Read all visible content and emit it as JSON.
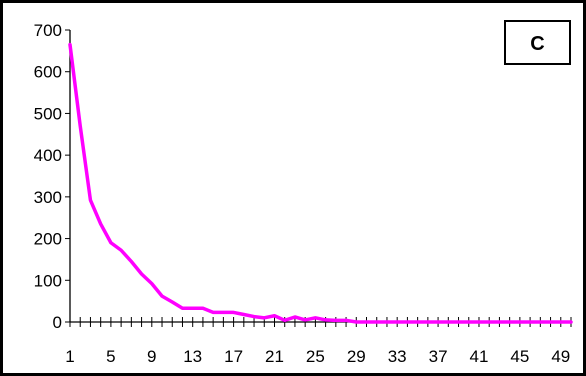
{
  "chart_data": {
    "type": "line",
    "title": "",
    "xlabel": "",
    "ylabel": "",
    "panel_label": "C",
    "x": [
      1,
      2,
      3,
      4,
      5,
      6,
      7,
      8,
      9,
      10,
      11,
      12,
      13,
      14,
      15,
      16,
      17,
      18,
      19,
      20,
      21,
      22,
      23,
      24,
      25,
      26,
      27,
      28,
      29,
      30,
      31,
      32,
      33,
      34,
      35,
      36,
      37,
      38,
      39,
      40,
      41,
      42,
      43,
      44,
      45,
      46,
      47,
      48,
      49,
      50
    ],
    "series": [
      {
        "name": "",
        "color": "#ff00ff",
        "values": [
          665,
          470,
          292,
          235,
          190,
          172,
          145,
          115,
          92,
          62,
          48,
          33,
          33,
          33,
          23,
          23,
          23,
          18,
          13,
          10,
          15,
          4,
          12,
          5,
          10,
          5,
          4,
          4,
          0,
          0,
          0,
          0,
          0,
          0,
          0,
          0,
          0,
          0,
          0,
          0,
          0,
          0,
          0,
          0,
          0,
          0,
          0,
          0,
          0,
          0
        ]
      }
    ],
    "ylim": [
      0,
      700
    ],
    "yticks": [
      0,
      100,
      200,
      300,
      400,
      500,
      600,
      700
    ],
    "xlim": [
      1,
      50
    ],
    "xtick_labels": [
      1,
      5,
      9,
      13,
      17,
      21,
      25,
      29,
      33,
      37,
      41,
      45,
      49
    ],
    "grid": false,
    "legend": "none"
  }
}
